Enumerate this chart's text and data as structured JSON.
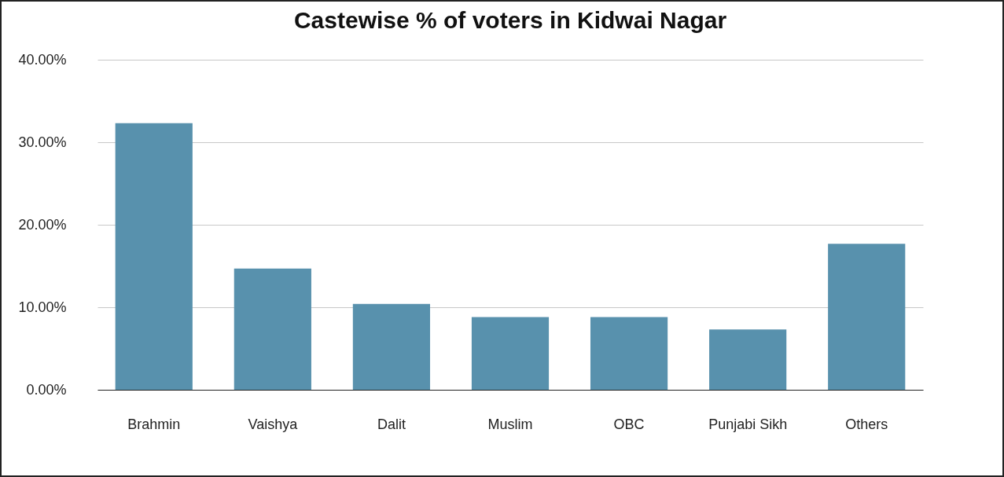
{
  "chart_data": {
    "type": "bar",
    "title": "Castewise % of voters in Kidwai Nagar",
    "categories": [
      "Brahmin",
      "Vaishya",
      "Dalit",
      "Muslim",
      "OBC",
      "Punjabi Sikh",
      "Others"
    ],
    "values": [
      32.3,
      14.7,
      10.4,
      8.8,
      8.8,
      7.3,
      17.7
    ],
    "color": "#5891ad",
    "ylim": [
      0,
      40
    ],
    "yticks": [
      {
        "value": 0,
        "label": "0.00%"
      },
      {
        "value": 10,
        "label": "10.00%"
      },
      {
        "value": 20,
        "label": "20.00%"
      },
      {
        "value": 30,
        "label": "30.00%"
      },
      {
        "value": 40,
        "label": "40.00%"
      }
    ],
    "grid": "y"
  }
}
